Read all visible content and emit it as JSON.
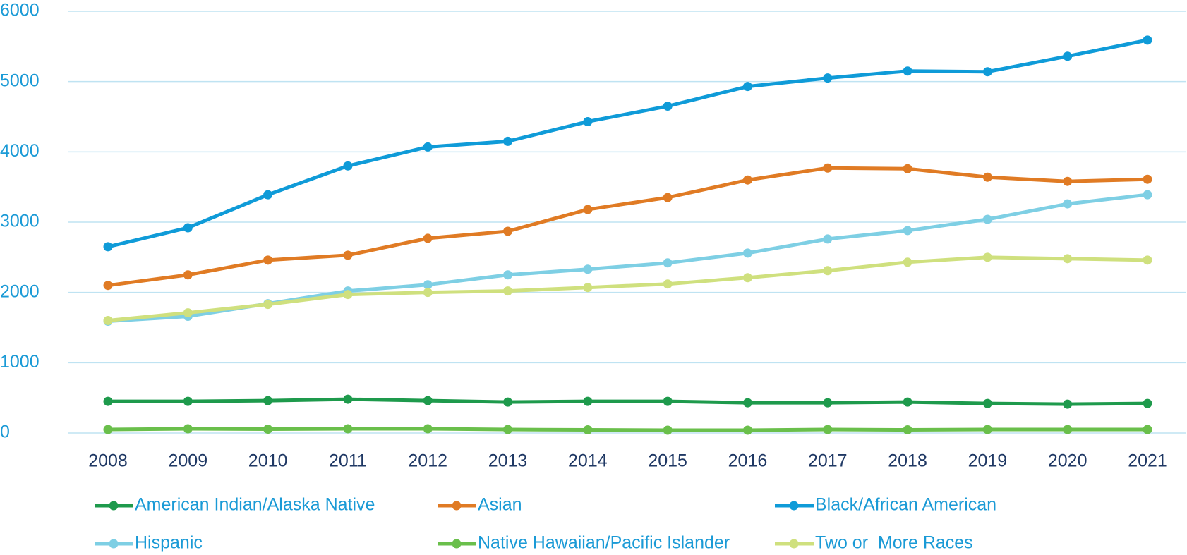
{
  "chart_data": {
    "type": "line",
    "x": [
      "2008",
      "2009",
      "2010",
      "2011",
      "2012",
      "2013",
      "2014",
      "2015",
      "2016",
      "2017",
      "2018",
      "2019",
      "2020",
      "2021"
    ],
    "series": [
      {
        "name": "American Indian/Alaska Native",
        "color": "#1e9a4c",
        "values": [
          450,
          450,
          460,
          480,
          460,
          440,
          450,
          450,
          430,
          430,
          440,
          420,
          410,
          420
        ]
      },
      {
        "name": "Asian",
        "color": "#e07b24",
        "values": [
          2100,
          2250,
          2460,
          2530,
          2770,
          2870,
          3180,
          3350,
          3600,
          3770,
          3760,
          3640,
          3580,
          3610
        ]
      },
      {
        "name": "Black/African American",
        "color": "#0f9bd8",
        "values": [
          2650,
          2920,
          3390,
          3800,
          4070,
          4150,
          4430,
          4650,
          4930,
          5050,
          5150,
          5140,
          5360,
          5590
        ]
      },
      {
        "name": "Hispanic",
        "color": "#7ecfe4",
        "values": [
          1590,
          1660,
          1840,
          2020,
          2110,
          2250,
          2330,
          2420,
          2560,
          2760,
          2880,
          3040,
          3260,
          3390
        ]
      },
      {
        "name": "Native Hawaiian/Pacific Islander",
        "color": "#6abf4b",
        "values": [
          50,
          60,
          55,
          60,
          60,
          50,
          45,
          40,
          40,
          50,
          45,
          50,
          50,
          50
        ]
      },
      {
        "name": "Two or  More Races",
        "color": "#cfe07e",
        "values": [
          1600,
          1710,
          1830,
          1970,
          2000,
          2020,
          2070,
          2120,
          2210,
          2310,
          2430,
          2500,
          2480,
          2460
        ]
      }
    ],
    "ylim": [
      0,
      6000
    ],
    "yticks": [
      0,
      1000,
      2000,
      3000,
      4000,
      5000,
      6000
    ],
    "grid": true,
    "legend": "bottom"
  }
}
